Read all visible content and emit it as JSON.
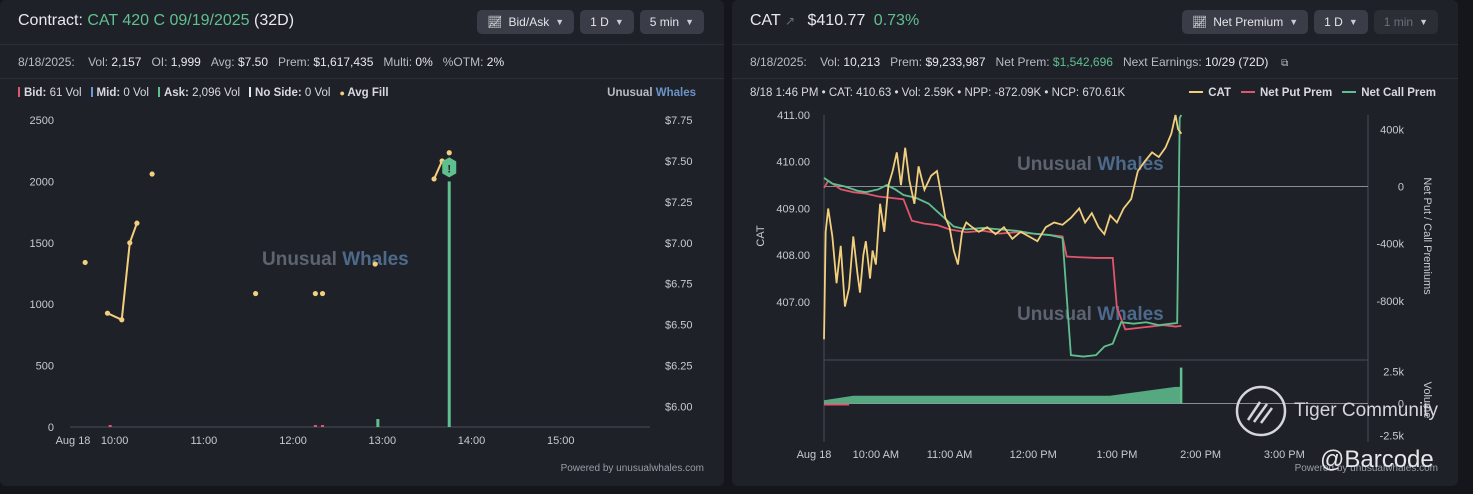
{
  "left": {
    "title_prefix": "Contract:",
    "contract": "CAT 420 C 09/19/2025",
    "dte": "(32D)",
    "controls": [
      "Bid/Ask",
      "1 D",
      "5 min"
    ],
    "stats": [
      {
        "label": "8/18/2025:",
        "value": ""
      },
      {
        "label": "Vol:",
        "value": "2,157"
      },
      {
        "label": "OI:",
        "value": "1,999"
      },
      {
        "label": "Avg:",
        "value": "$7.50"
      },
      {
        "label": "Prem:",
        "value": "$1,617,435"
      },
      {
        "label": "Multi:",
        "value": "0%"
      },
      {
        "label": "%OTM:",
        "value": "2%"
      }
    ],
    "legend": [
      {
        "label": "Bid:",
        "value": "61 Vol",
        "color": "#e0566b"
      },
      {
        "label": "Mid:",
        "value": "0 Vol",
        "color": "#6a9bd8"
      },
      {
        "label": "Ask:",
        "value": "2,096 Vol",
        "color": "#5fc08f"
      },
      {
        "label": "No Side:",
        "value": "0 Vol",
        "color": "#e8e9ee"
      },
      {
        "label": "Avg Fill",
        "value": "",
        "color": "#f2cf7d"
      }
    ],
    "brand": {
      "a": "Unusual",
      "b": "Whales"
    },
    "powered": "Powered by unusualwhales.com",
    "watermark": {
      "a": "Unusual",
      "b": "Whales"
    },
    "marker_label": "!"
  },
  "left_chart": {
    "type": "bar",
    "x_ticks": [
      "Aug 18",
      "10:00",
      "11:00",
      "12:00",
      "13:00",
      "14:00",
      "15:00"
    ],
    "y_left_ticks": [
      "0",
      "500",
      "1000",
      "1500",
      "2000",
      "2500"
    ],
    "y_right_ticks": [
      "$6.00",
      "$6.25",
      "$6.50",
      "$6.75",
      "$7.00",
      "$7.25",
      "$7.50",
      "$7.75"
    ],
    "ylim_volume": [
      0,
      2500
    ],
    "ylim_price": [
      5.875,
      7.75
    ],
    "x_range_hours": [
      9.5,
      16.0
    ],
    "volume_bars": [
      {
        "t": 9.95,
        "value": 8,
        "side": "bid"
      },
      {
        "t": 12.25,
        "value": 12,
        "side": "bid"
      },
      {
        "t": 12.33,
        "value": 8,
        "side": "bid"
      },
      {
        "t": 12.95,
        "value": 65,
        "side": "ask"
      },
      {
        "t": 13.75,
        "value": 2000,
        "side": "ask"
      }
    ],
    "avg_fill": [
      {
        "t": 9.67,
        "price": 6.88
      },
      {
        "t": 9.92,
        "price": 6.57
      },
      {
        "t": 10.08,
        "price": 6.53
      },
      {
        "t": 10.17,
        "price": 7.0
      },
      {
        "t": 10.25,
        "price": 7.12
      },
      {
        "t": 10.42,
        "price": 7.42
      },
      {
        "t": 11.58,
        "price": 6.69
      },
      {
        "t": 12.25,
        "price": 6.69
      },
      {
        "t": 12.33,
        "price": 6.69
      },
      {
        "t": 12.92,
        "price": 6.87
      },
      {
        "t": 13.58,
        "price": 7.39
      },
      {
        "t": 13.67,
        "price": 7.5
      },
      {
        "t": 13.75,
        "price": 7.55
      }
    ],
    "line_segments": [
      [
        1,
        2,
        3,
        4
      ],
      [
        10,
        11
      ]
    ]
  },
  "right": {
    "ticker": "CAT",
    "price": "$410.77",
    "change": "0.73%",
    "controls": [
      "Net Premium",
      "1 D",
      "1 min"
    ],
    "stats": [
      {
        "label": "8/18/2025:",
        "value": "",
        "color": ""
      },
      {
        "label": "Vol:",
        "value": "10,213",
        "color": ""
      },
      {
        "label": "Prem:",
        "value": "$9,233,987",
        "color": ""
      },
      {
        "label": "Net Prem:",
        "value": "$1,542,696",
        "color": "#5fc08f"
      },
      {
        "label": "Next Earnings:",
        "value": "10/29 (72D)",
        "color": ""
      }
    ],
    "info": "8/18 1:46 PM • CAT: 410.63 • Vol: 2.59K • NPP: -872.09K • NCP: 670.61K",
    "legend": [
      {
        "label": "CAT",
        "color": "#f2cf7d"
      },
      {
        "label": "Net Put Prem",
        "color": "#e0566b"
      },
      {
        "label": "Net Call Prem",
        "color": "#5fc08f"
      }
    ],
    "powered": "Powered by unusualwhales.com",
    "watermark": {
      "a": "Unusual",
      "b": "Whales"
    }
  },
  "right_chart": {
    "type": "line",
    "x_ticks": [
      "Aug 18",
      "10:00 AM",
      "11:00 AM",
      "12:00 PM",
      "1:00 PM",
      "2:00 PM",
      "3:00 PM"
    ],
    "y_left_label": "CAT",
    "y_left_ticks": [
      "407.00",
      "408.00",
      "409.00",
      "410.00",
      "411.00"
    ],
    "y_right_label": "Net Put / Call Premiums",
    "y_right_ticks": [
      "-800k",
      "-400k",
      "0",
      "400k"
    ],
    "vol_label": "Volume",
    "vol_ticks": [
      "2.5k",
      "0",
      "-2.5k"
    ],
    "ylim_price": [
      405.8,
      411.0
    ],
    "ylim_prem": [
      -1200000,
      500000
    ],
    "ylim_vol": [
      -3000,
      3000
    ],
    "x_range_hours": [
      9.5,
      16.0
    ],
    "cat": [
      [
        9.5,
        406.2
      ],
      [
        9.52,
        408.5
      ],
      [
        9.55,
        409.0
      ],
      [
        9.6,
        408.4
      ],
      [
        9.65,
        407.4
      ],
      [
        9.7,
        408.2
      ],
      [
        9.75,
        406.9
      ],
      [
        9.8,
        407.3
      ],
      [
        9.85,
        408.4
      ],
      [
        9.9,
        407.6
      ],
      [
        9.93,
        407.2
      ],
      [
        9.97,
        408.0
      ],
      [
        10.0,
        408.3
      ],
      [
        10.05,
        407.5
      ],
      [
        10.08,
        408.1
      ],
      [
        10.12,
        407.8
      ],
      [
        10.17,
        409.1
      ],
      [
        10.22,
        408.5
      ],
      [
        10.27,
        409.5
      ],
      [
        10.32,
        409.8
      ],
      [
        10.37,
        410.2
      ],
      [
        10.42,
        409.5
      ],
      [
        10.47,
        410.3
      ],
      [
        10.52,
        409.6
      ],
      [
        10.58,
        409.1
      ],
      [
        10.63,
        409.9
      ],
      [
        10.7,
        409.4
      ],
      [
        10.78,
        409.7
      ],
      [
        10.85,
        409.8
      ],
      [
        10.9,
        409.3
      ],
      [
        10.95,
        408.8
      ],
      [
        11.0,
        408.6
      ],
      [
        11.05,
        408.1
      ],
      [
        11.1,
        407.8
      ],
      [
        11.15,
        408.5
      ],
      [
        11.2,
        408.7
      ],
      [
        11.27,
        408.6
      ],
      [
        11.35,
        408.5
      ],
      [
        11.45,
        408.6
      ],
      [
        11.55,
        408.45
      ],
      [
        11.65,
        408.6
      ],
      [
        11.75,
        408.35
      ],
      [
        11.85,
        408.5
      ],
      [
        11.95,
        408.4
      ],
      [
        12.05,
        408.3
      ],
      [
        12.15,
        408.6
      ],
      [
        12.25,
        408.7
      ],
      [
        12.35,
        408.65
      ],
      [
        12.45,
        408.8
      ],
      [
        12.55,
        409.0
      ],
      [
        12.62,
        408.7
      ],
      [
        12.7,
        408.9
      ],
      [
        12.78,
        408.6
      ],
      [
        12.85,
        408.45
      ],
      [
        12.92,
        408.85
      ],
      [
        13.0,
        408.7
      ],
      [
        13.08,
        409.0
      ],
      [
        13.17,
        409.2
      ],
      [
        13.25,
        409.8
      ],
      [
        13.33,
        410.0
      ],
      [
        13.42,
        410.2
      ],
      [
        13.5,
        410.1
      ],
      [
        13.58,
        410.3
      ],
      [
        13.65,
        410.6
      ],
      [
        13.7,
        411.0
      ],
      [
        13.73,
        410.7
      ],
      [
        13.77,
        410.6
      ]
    ],
    "net_put": [
      [
        9.5,
        -10000
      ],
      [
        9.55,
        40000
      ],
      [
        9.7,
        -20000
      ],
      [
        9.85,
        -40000
      ],
      [
        10.0,
        -50000
      ],
      [
        10.15,
        -70000
      ],
      [
        10.3,
        -80000
      ],
      [
        10.45,
        -90000
      ],
      [
        10.55,
        -240000
      ],
      [
        10.7,
        -260000
      ],
      [
        10.85,
        -270000
      ],
      [
        11.0,
        -300000
      ],
      [
        11.2,
        -320000
      ],
      [
        11.4,
        -310000
      ],
      [
        11.6,
        -330000
      ],
      [
        11.8,
        -320000
      ],
      [
        12.0,
        -330000
      ],
      [
        12.2,
        -340000
      ],
      [
        12.35,
        -350000
      ],
      [
        12.4,
        -490000
      ],
      [
        12.55,
        -495000
      ],
      [
        12.75,
        -500000
      ],
      [
        12.95,
        -500000
      ],
      [
        13.0,
        -850000
      ],
      [
        13.1,
        -1000000
      ],
      [
        13.25,
        -990000
      ],
      [
        13.4,
        -980000
      ],
      [
        13.55,
        -970000
      ],
      [
        13.7,
        -980000
      ],
      [
        13.77,
        -975000
      ]
    ],
    "net_call": [
      [
        9.5,
        60000
      ],
      [
        9.6,
        20000
      ],
      [
        9.75,
        0
      ],
      [
        9.9,
        -30000
      ],
      [
        10.0,
        -40000
      ],
      [
        10.15,
        -20000
      ],
      [
        10.25,
        10000
      ],
      [
        10.35,
        -20000
      ],
      [
        10.45,
        -60000
      ],
      [
        10.6,
        -80000
      ],
      [
        10.75,
        -120000
      ],
      [
        10.9,
        -200000
      ],
      [
        11.05,
        -280000
      ],
      [
        11.2,
        -300000
      ],
      [
        11.4,
        -290000
      ],
      [
        11.6,
        -300000
      ],
      [
        11.8,
        -310000
      ],
      [
        12.0,
        -330000
      ],
      [
        12.2,
        -340000
      ],
      [
        12.35,
        -360000
      ],
      [
        12.45,
        -1180000
      ],
      [
        12.6,
        -1190000
      ],
      [
        12.75,
        -1180000
      ],
      [
        12.85,
        -1120000
      ],
      [
        12.95,
        -1100000
      ],
      [
        13.05,
        -950000
      ],
      [
        13.2,
        -960000
      ],
      [
        13.35,
        -950000
      ],
      [
        13.5,
        -970000
      ],
      [
        13.65,
        -960000
      ],
      [
        13.72,
        -955000
      ],
      [
        13.75,
        480000
      ],
      [
        13.77,
        500000
      ]
    ],
    "volume_bars": {
      "start": 9.5,
      "end": 13.77,
      "level_start": 250,
      "level_mid": 600,
      "level_end": 1300,
      "spike_value": 2800
    }
  }
}
